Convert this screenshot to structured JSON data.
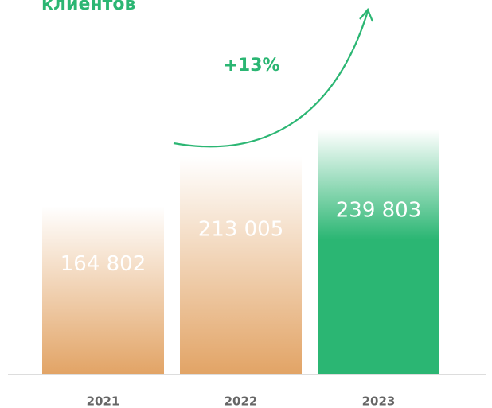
{
  "chart_data": {
    "type": "bar",
    "title": "клиентов",
    "annotation": "+13%",
    "categories": [
      "2021",
      "2022",
      "2023"
    ],
    "values": [
      164802,
      213005,
      239803
    ],
    "value_labels": [
      "164 802",
      "213 005",
      "239 803"
    ],
    "colors": [
      "#e2a466",
      "#e2a466",
      "#2bb673"
    ],
    "accent_color": "#2bb673",
    "ylim": [
      0,
      250000
    ]
  }
}
